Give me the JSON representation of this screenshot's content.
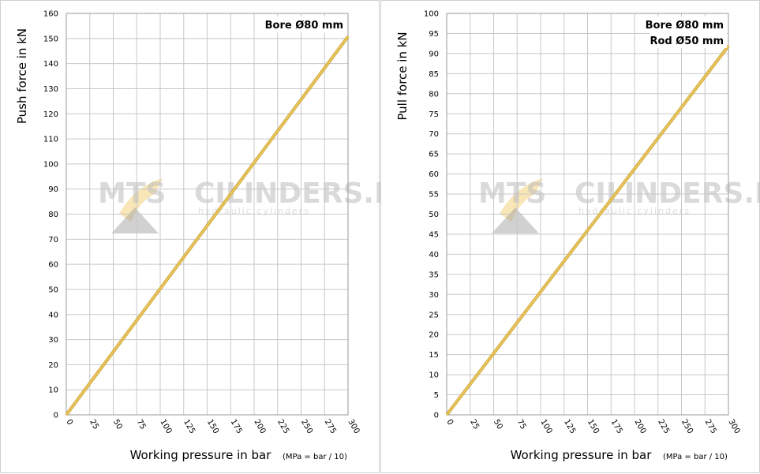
{
  "chart_data": [
    {
      "type": "line",
      "title": "",
      "ylabel": "Push force in kN",
      "xlabel": "Working pressure in bar",
      "xlabel_note": "(MPa = bar / 10)",
      "annotations": [
        "Bore Ø80 mm"
      ],
      "xlim": [
        0,
        300
      ],
      "ylim": [
        0,
        160
      ],
      "x_ticks": [
        0,
        25,
        50,
        75,
        100,
        125,
        150,
        175,
        200,
        225,
        250,
        275,
        300
      ],
      "y_ticks": [
        0,
        10,
        20,
        30,
        40,
        50,
        60,
        70,
        80,
        90,
        100,
        110,
        120,
        130,
        140,
        150,
        160
      ],
      "grid": true,
      "series": [
        {
          "x": [
            0,
            300
          ],
          "y": [
            0,
            150.8
          ]
        }
      ],
      "line_color": "#e8c45a"
    },
    {
      "type": "line",
      "title": "",
      "ylabel": "Pull force in kN",
      "xlabel": "Working pressure in bar",
      "xlabel_note": "(MPa = bar / 10)",
      "annotations": [
        "Bore Ø80 mm",
        "Rod Ø50 mm"
      ],
      "xlim": [
        0,
        300
      ],
      "ylim": [
        0,
        100
      ],
      "x_ticks": [
        0,
        25,
        50,
        75,
        100,
        125,
        150,
        175,
        200,
        225,
        250,
        275,
        300
      ],
      "y_ticks": [
        0,
        5,
        10,
        15,
        20,
        25,
        30,
        35,
        40,
        45,
        50,
        55,
        60,
        65,
        70,
        75,
        80,
        85,
        90,
        95,
        100
      ],
      "grid": true,
      "series": [
        {
          "x": [
            0,
            300
          ],
          "y": [
            0,
            91.9
          ]
        }
      ],
      "line_color": "#e8c45a"
    }
  ],
  "watermark": {
    "brand_left": "MTS",
    "brand_right": "CILINDERS.NL",
    "tagline": "hydraulic cylinders",
    "accent_color": "#f0c860",
    "gray_color": "#9a9a9a"
  },
  "colors": {
    "grid": "#c8c8c8",
    "axis": "#9a9a9a",
    "line": "#e8c45a"
  }
}
